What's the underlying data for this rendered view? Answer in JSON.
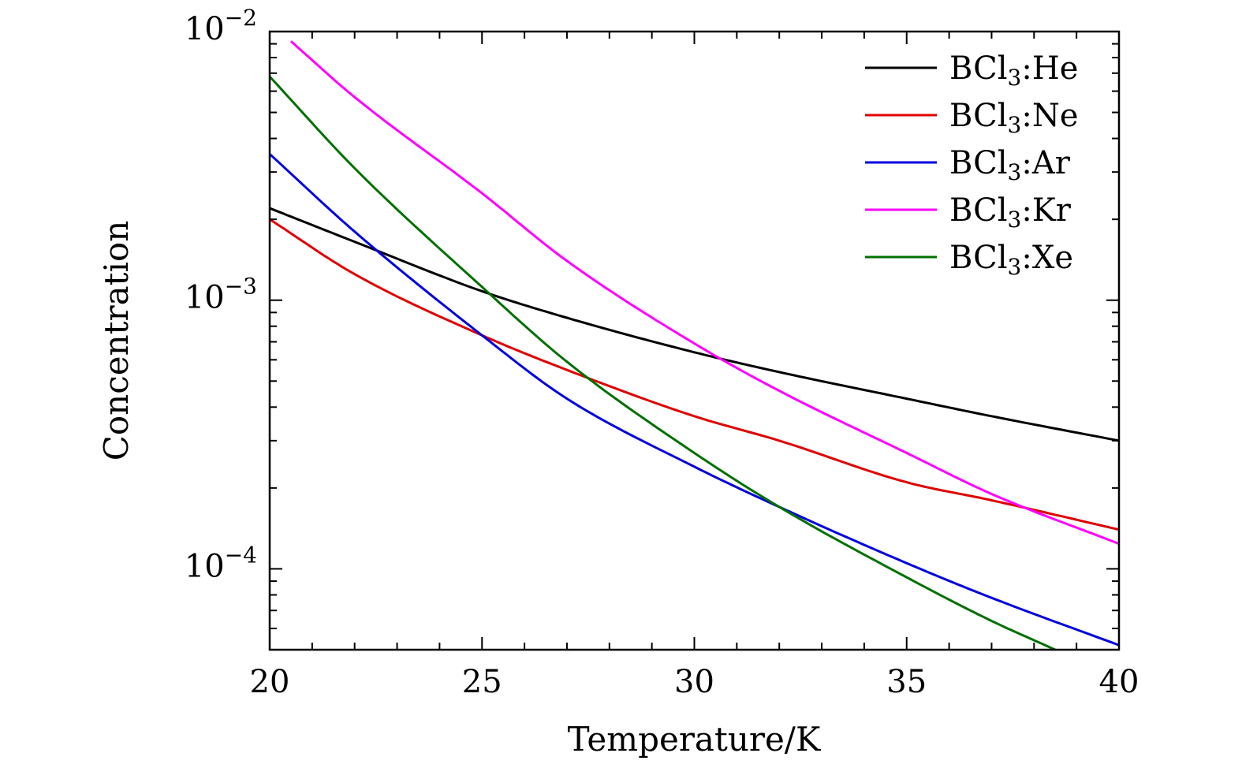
{
  "chart_data": {
    "type": "line",
    "title": "",
    "xlabel": "Temperature/K",
    "ylabel": "Concentration",
    "x_scale": "linear",
    "y_scale": "log",
    "xlim": [
      20,
      40
    ],
    "ylim": [
      5e-05,
      0.01
    ],
    "xticks": [
      {
        "value": 20,
        "label": "20"
      },
      {
        "value": 25,
        "label": "25"
      },
      {
        "value": 30,
        "label": "30"
      },
      {
        "value": 35,
        "label": "35"
      },
      {
        "value": 40,
        "label": "40"
      }
    ],
    "yticks": [
      {
        "value": 0.0001,
        "base": "10",
        "exp": "−4"
      },
      {
        "value": 0.001,
        "base": "10",
        "exp": "−3"
      },
      {
        "value": 0.01,
        "base": "10",
        "exp": "−2"
      }
    ],
    "grid": false,
    "legend_position": "top-right",
    "series": [
      {
        "name": "BCl3:He",
        "label_main": "BCl",
        "label_sub": "3",
        "label_tail": ":He",
        "color": "#000000",
        "x": [
          20,
          22,
          25,
          27,
          30,
          32,
          35,
          37,
          40
        ],
        "y": [
          0.0022,
          0.00165,
          0.00108,
          0.00086,
          0.00064,
          0.00054,
          0.00043,
          0.00037,
          0.0003
        ]
      },
      {
        "name": "BCl3:Ne",
        "label_main": "BCl",
        "label_sub": "3",
        "label_tail": ":Ne",
        "color": "#e00000",
        "x": [
          20,
          22,
          25,
          27,
          30,
          32,
          35,
          37,
          40
        ],
        "y": [
          0.002,
          0.00125,
          0.00074,
          0.00055,
          0.00037,
          0.0003,
          0.00021,
          0.00018,
          0.00014
        ]
      },
      {
        "name": "BCl3:Ar",
        "label_main": "BCl",
        "label_sub": "3",
        "label_tail": ":Ar",
        "color": "#0000e0",
        "x": [
          20,
          22,
          25,
          27,
          30,
          32,
          35,
          37,
          40
        ],
        "y": [
          0.0035,
          0.0018,
          0.00074,
          0.00043,
          0.00024,
          0.00017,
          0.000105,
          7.8e-05,
          5.2e-05
        ]
      },
      {
        "name": "BCl3:Kr",
        "label_main": "BCl",
        "label_sub": "3",
        "label_tail": ":Kr",
        "color": "#ff00ff",
        "x": [
          20.5,
          22,
          25,
          27,
          30,
          32,
          35,
          37,
          40
        ],
        "y": [
          0.0092,
          0.0057,
          0.0025,
          0.0014,
          0.00069,
          0.00046,
          0.00027,
          0.00019,
          0.000124
        ]
      },
      {
        "name": "BCl3:Xe",
        "label_main": "BCl",
        "label_sub": "3",
        "label_tail": ":Xe",
        "color": "#007000",
        "x": [
          20,
          22,
          25,
          27,
          30,
          32,
          35,
          37,
          38.5
        ],
        "y": [
          0.0068,
          0.0031,
          0.00112,
          0.00059,
          0.00027,
          0.00017,
          9.3e-05,
          6.4e-05,
          5e-05
        ]
      }
    ]
  }
}
